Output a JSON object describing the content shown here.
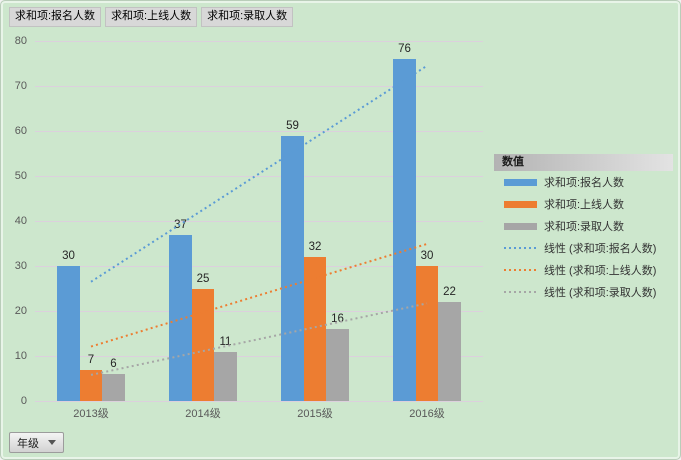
{
  "field_buttons": [
    {
      "label": "求和项:报名人数"
    },
    {
      "label": "求和项:上线人数"
    },
    {
      "label": "求和项:录取人数"
    }
  ],
  "axis_field_button": {
    "label": "年级"
  },
  "legend": {
    "title": "数值",
    "items": [
      {
        "label": "求和项:报名人数",
        "swatch": "bar",
        "color": "#5b9bd5"
      },
      {
        "label": "求和项:上线人数",
        "swatch": "bar",
        "color": "#ed7d31"
      },
      {
        "label": "求和项:录取人数",
        "swatch": "bar",
        "color": "#a6a6a6"
      },
      {
        "label": "线性 (求和项:报名人数)",
        "swatch": "dotted",
        "color": "#5b9bd5"
      },
      {
        "label": "线性 (求和项:上线人数)",
        "swatch": "dotted",
        "color": "#ed7d31"
      },
      {
        "label": "线性 (求和项:录取人数)",
        "swatch": "dotted",
        "color": "#a6a6a6"
      }
    ]
  },
  "chart_data": {
    "type": "bar",
    "categories": [
      "2013级",
      "2014级",
      "2015级",
      "2016级"
    ],
    "series": [
      {
        "name": "求和项:报名人数",
        "color": "#5b9bd5",
        "values": [
          30,
          37,
          59,
          76
        ]
      },
      {
        "name": "求和项:上线人数",
        "color": "#ed7d31",
        "values": [
          7,
          25,
          32,
          30
        ]
      },
      {
        "name": "求和项:录取人数",
        "color": "#a6a6a6",
        "values": [
          6,
          11,
          16,
          22
        ]
      }
    ],
    "trendlines": [
      {
        "name": "线性 (求和项:报名人数)",
        "color": "#5b9bd5",
        "for_series": 0
      },
      {
        "name": "线性 (求和项:上线人数)",
        "color": "#ed7d31",
        "for_series": 1
      },
      {
        "name": "线性 (求和项:录取人数)",
        "color": "#a6a6a6",
        "for_series": 2
      }
    ],
    "ylim": [
      0,
      80
    ],
    "yticks": [
      0,
      10,
      20,
      30,
      40,
      50,
      60,
      70,
      80
    ],
    "data_labels": true,
    "grid": "horizontal",
    "legend_position": "right"
  },
  "colors": {
    "background": "#cde7cd",
    "gridline": "#dcd0dd",
    "axis_text": "#595959",
    "data_label_text": "#262626"
  }
}
